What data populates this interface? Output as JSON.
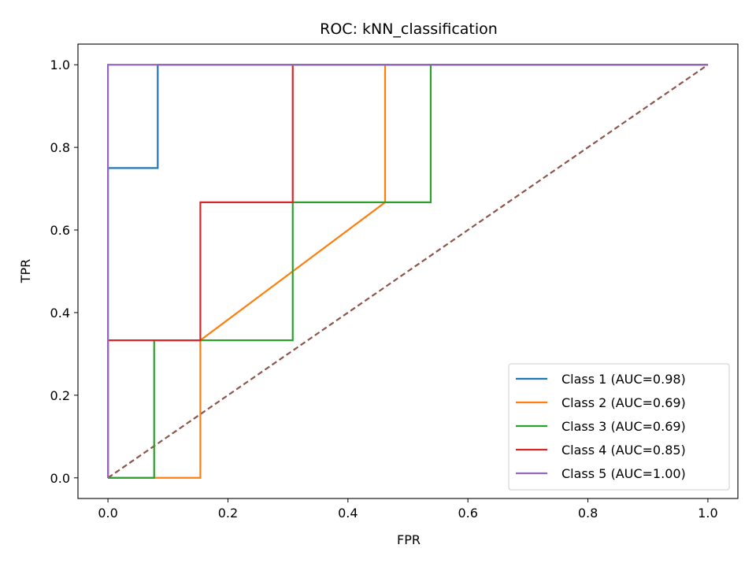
{
  "chart_data": {
    "type": "line",
    "title": "ROC: kNN_classification",
    "xlabel": "FPR",
    "ylabel": "TPR",
    "xlim": [
      -0.05,
      1.05
    ],
    "ylim": [
      -0.05,
      1.05
    ],
    "xticks": [
      "0.0",
      "0.2",
      "0.4",
      "0.6",
      "0.8",
      "1.0"
    ],
    "yticks": [
      "0.0",
      "0.2",
      "0.4",
      "0.6",
      "0.8",
      "1.0"
    ],
    "grid": false,
    "legend_position": "lower-right",
    "series": [
      {
        "name": "Class 1 (AUC=0.98)",
        "color": "#1f77b4",
        "x": [
          0.0,
          0.0,
          0.0,
          0.083,
          0.083,
          1.0
        ],
        "y": [
          0.0,
          0.75,
          0.75,
          0.75,
          1.0,
          1.0
        ]
      },
      {
        "name": "Class 2 (AUC=0.69)",
        "color": "#ff7f0e",
        "x": [
          0.0,
          0.154,
          0.154,
          0.462,
          0.462,
          1.0
        ],
        "y": [
          0.0,
          0.0,
          0.333,
          0.667,
          1.0,
          1.0
        ]
      },
      {
        "name": "Class 3 (AUC=0.69)",
        "color": "#2ca02c",
        "x": [
          0.0,
          0.077,
          0.077,
          0.308,
          0.308,
          0.538,
          0.538,
          1.0
        ],
        "y": [
          0.0,
          0.0,
          0.333,
          0.333,
          0.667,
          0.667,
          1.0,
          1.0
        ]
      },
      {
        "name": "Class 4 (AUC=0.85)",
        "color": "#d62728",
        "x": [
          0.0,
          0.0,
          0.154,
          0.154,
          0.308,
          0.308,
          1.0
        ],
        "y": [
          0.0,
          0.333,
          0.333,
          0.667,
          0.667,
          1.0,
          1.0
        ]
      },
      {
        "name": "Class 5 (AUC=1.00)",
        "color": "#9467bd",
        "x": [
          0.0,
          0.0,
          1.0
        ],
        "y": [
          0.0,
          1.0,
          1.0
        ]
      }
    ],
    "reference_line": {
      "color": "#8c564b",
      "x": [
        0.0,
        1.0
      ],
      "y": [
        0.0,
        1.0
      ]
    }
  }
}
